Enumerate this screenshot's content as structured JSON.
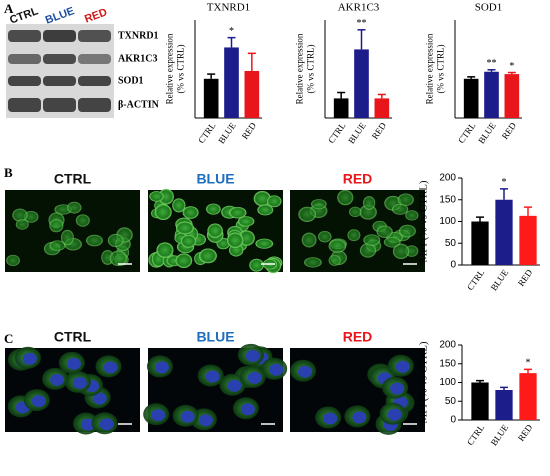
{
  "figure": {
    "panel_labels": [
      "A",
      "B",
      "C"
    ],
    "blot": {
      "conditions": [
        "CTRL",
        "BLUE",
        "RED"
      ],
      "proteins": [
        "TXNRD1",
        "AKR1C3",
        "SOD1",
        "β-ACTIN"
      ]
    },
    "image_panels": [
      {
        "headers": [
          "CTRL",
          "BLUE",
          "RED"
        ],
        "header_colors": [
          "#111111",
          "#1f6fc0",
          "#e8161b"
        ]
      },
      {
        "headers": [
          "CTRL",
          "BLUE",
          "RED"
        ],
        "header_colors": [
          "#111111",
          "#1f6fc0",
          "#e8161b"
        ]
      }
    ]
  },
  "chart_data": [
    {
      "type": "bar",
      "title": "TXNRD1",
      "y_label": [
        "Relative expression",
        "(% vs CTRL)"
      ],
      "categories": [
        "CTRL",
        "BLUE",
        "RED"
      ],
      "values": [
        1.0,
        1.8,
        1.2
      ],
      "errors": [
        0.12,
        0.25,
        0.45
      ],
      "annotations": [
        null,
        "*",
        null
      ],
      "colors": [
        "#000000",
        "#1c1c8a",
        "#e8161b"
      ],
      "ylim": [
        0,
        2.5
      ]
    },
    {
      "type": "bar",
      "title": "AKR1C3",
      "y_label": [
        "Relative expression",
        "(% vs CTRL)"
      ],
      "categories": [
        "CTRL",
        "BLUE",
        "RED"
      ],
      "values": [
        1.0,
        3.5,
        1.0
      ],
      "errors": [
        0.3,
        1.0,
        0.2
      ],
      "annotations": [
        null,
        "**",
        null
      ],
      "colors": [
        "#000000",
        "#1c1c8a",
        "#e8161b"
      ],
      "ylim": [
        0,
        5
      ]
    },
    {
      "type": "bar",
      "title": "SOD1",
      "y_label": [
        "Relative expression",
        "(% vs CTRL)"
      ],
      "categories": [
        "CTRL",
        "BLUE",
        "RED"
      ],
      "values": [
        1.0,
        1.18,
        1.12
      ],
      "errors": [
        0.05,
        0.05,
        0.04
      ],
      "annotations": [
        null,
        "**",
        "*"
      ],
      "colors": [
        "#000000",
        "#1c1c8a",
        "#e8161b"
      ],
      "ylim": [
        0,
        2.5
      ]
    },
    {
      "type": "bar",
      "y_label": [
        "MFI (% vs CTRL)"
      ],
      "categories": [
        "CTRL",
        "BLUE",
        "RED"
      ],
      "values": [
        100,
        150,
        113
      ],
      "errors": [
        10,
        25,
        20
      ],
      "annotations": [
        null,
        "*",
        null
      ],
      "colors": [
        "#000000",
        "#1c1c8a",
        "#ff1a1a"
      ],
      "ylim": [
        0,
        200
      ],
      "yticks": [
        0,
        50,
        100,
        150,
        200
      ]
    },
    {
      "type": "bar",
      "y_label": [
        "MFI (% vs CTRL)"
      ],
      "categories": [
        "CTRL",
        "BLUE",
        "RED"
      ],
      "values": [
        100,
        80,
        125
      ],
      "errors": [
        5,
        7,
        10
      ],
      "annotations": [
        null,
        null,
        "*"
      ],
      "colors": [
        "#000000",
        "#1c1c8a",
        "#ff1a1a"
      ],
      "ylim": [
        0,
        200
      ],
      "yticks": [
        0,
        50,
        100,
        150,
        200
      ]
    }
  ]
}
